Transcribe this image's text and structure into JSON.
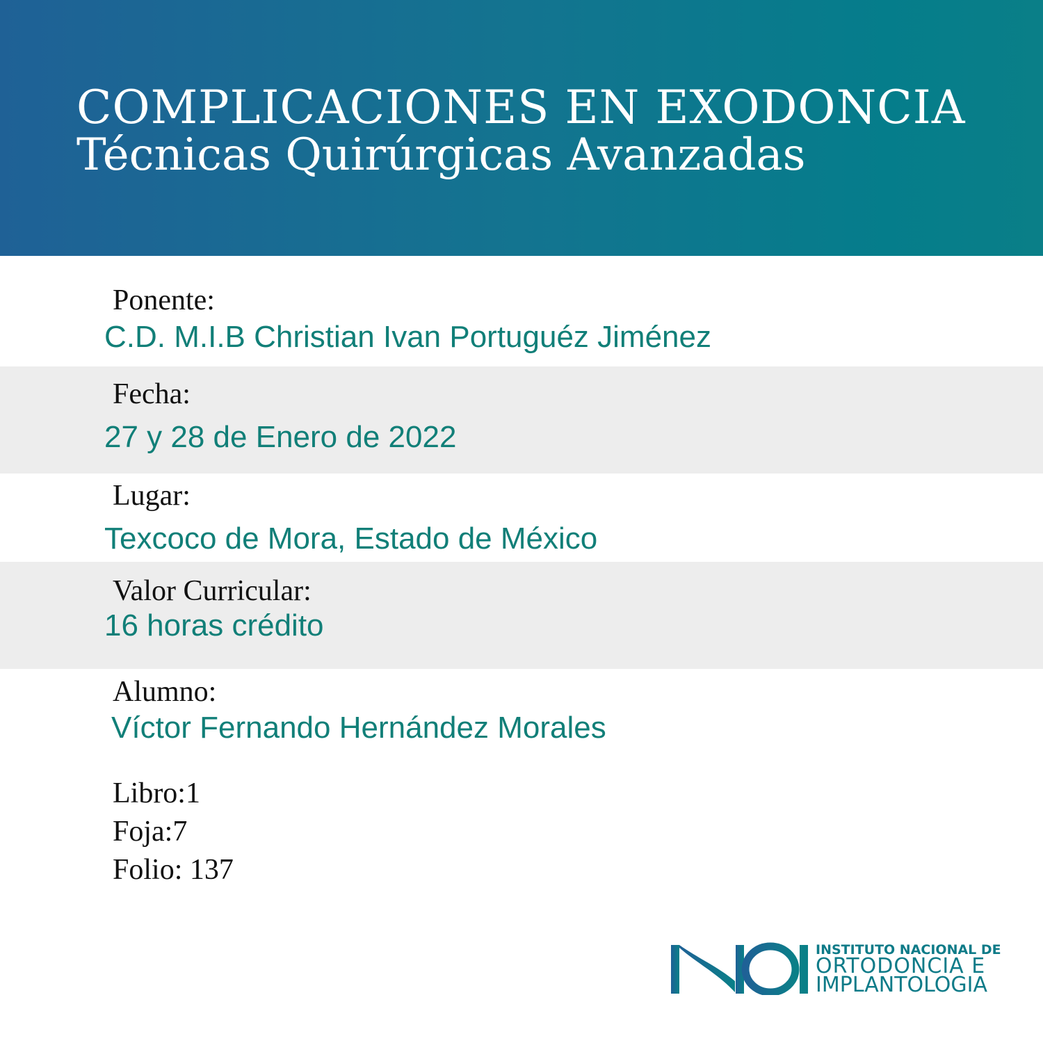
{
  "header": {
    "title": "COMPLICACIONES EN EXODONCIA",
    "subtitle": "Técnicas Quirúrgicas Avanzadas"
  },
  "fields": [
    {
      "label": "Ponente:",
      "value": "C.D. M.I.B Christian Ivan Portuguéz Jiménez"
    },
    {
      "label": "Fecha:",
      "value": "27 y 28 de Enero de 2022"
    },
    {
      "label": "Lugar:",
      "value": "Texcoco de Mora, Estado de México"
    },
    {
      "label": "Valor Curricular:",
      "value": "16 horas crédito"
    },
    {
      "label": "Alumno:",
      "value": "Víctor Fernando Hernández Morales"
    }
  ],
  "record": {
    "libro": "Libro:1",
    "foja": "Foja:7",
    "folio": "Folio: 137"
  },
  "logo": {
    "mark": "INOI",
    "line1": "INSTITUTO NACIONAL DE",
    "line2": "ORTODONCIA E",
    "line3": "IMPLANTOLOGIA"
  },
  "colors": {
    "accent": "#117f78",
    "header_start": "#1f6196",
    "header_end": "#0a7f88",
    "band": "#ededed"
  }
}
